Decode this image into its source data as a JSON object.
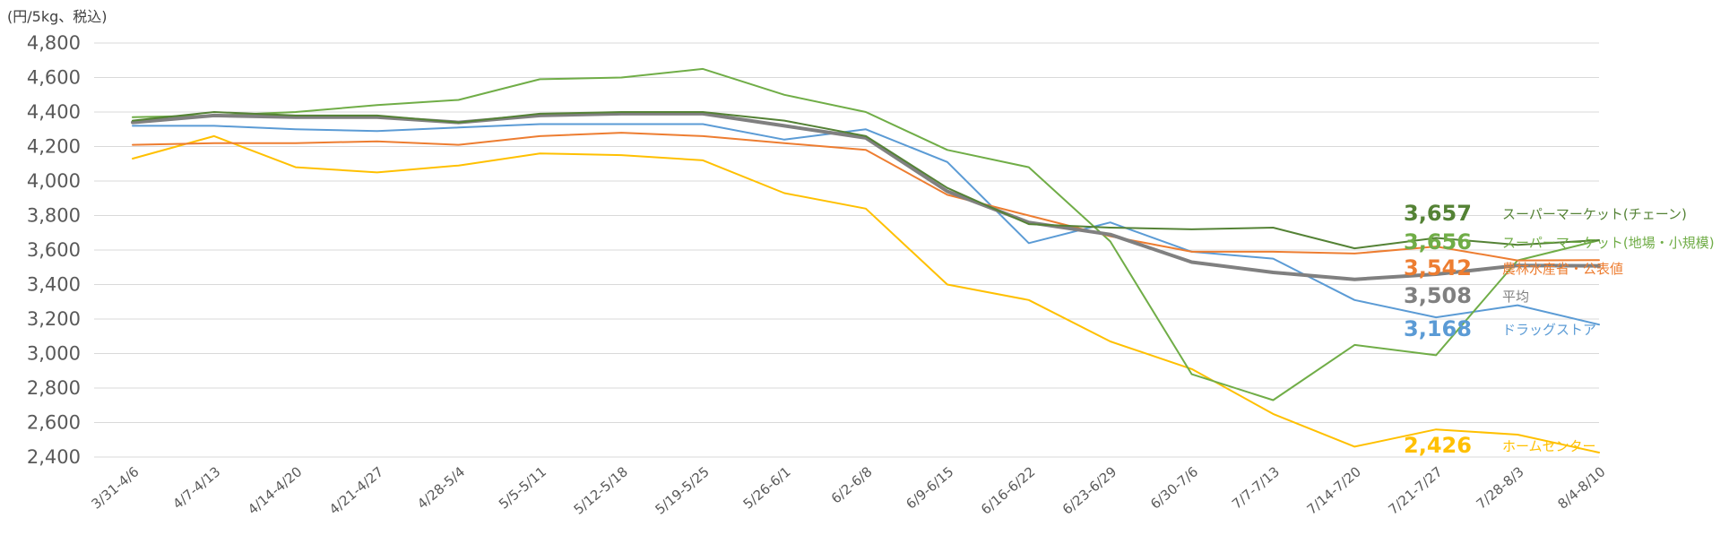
{
  "chart_data": {
    "type": "line",
    "ylabel": "(円/5kg、税込)",
    "ylim": [
      2400,
      4800
    ],
    "yticks": [
      2400,
      2600,
      2800,
      3000,
      3200,
      3400,
      3600,
      3800,
      4000,
      4200,
      4400,
      4600,
      4800
    ],
    "ytick_labels": [
      "2,400",
      "2,600",
      "2,800",
      "3,000",
      "3,200",
      "3,400",
      "3,600",
      "3,800",
      "4,000",
      "4,200",
      "4,400",
      "4,600",
      "4,800"
    ],
    "grid": true,
    "legend": "right-end labels",
    "categories": [
      "3/31-4/6",
      "4/7-4/13",
      "4/14-4/20",
      "4/21-4/27",
      "4/28-5/4",
      "5/5-5/11",
      "5/12-5/18",
      "5/19-5/25",
      "5/26-6/1",
      "6/2-6/8",
      "6/9-6/15",
      "6/16-6/22",
      "6/23-6/29",
      "6/30-7/6",
      "7/7-7/13",
      "7/14-7/20",
      "7/21-7/27",
      "7/28-8/3",
      "8/4-8/10"
    ],
    "series": [
      {
        "name": "ホームセンター",
        "color": "#ffc000",
        "values": [
          4130,
          4260,
          4080,
          4050,
          4090,
          4160,
          4150,
          4120,
          3930,
          3840,
          3400,
          3310,
          3070,
          2910,
          2650,
          2460,
          2560,
          2530,
          2426
        ],
        "end_label": "2,426",
        "line_width": 2
      },
      {
        "name": "ドラッグストア",
        "color": "#5b9bd5",
        "values": [
          4320,
          4320,
          4300,
          4290,
          4310,
          4330,
          4330,
          4330,
          4240,
          4300,
          4110,
          3640,
          3760,
          3590,
          3550,
          3310,
          3210,
          3280,
          3168
        ],
        "end_label": "3,168",
        "line_width": 2
      },
      {
        "name": "スーパーマーケット(地場・小規模)",
        "color": "#70ad47",
        "values": [
          4370,
          4380,
          4400,
          4440,
          4470,
          4590,
          4600,
          4650,
          4500,
          4400,
          4180,
          4080,
          3650,
          2880,
          2730,
          3050,
          2990,
          3540,
          3656
        ],
        "end_label": "3,656",
        "line_width": 2
      },
      {
        "name": "農林水産省・公表値",
        "color": "#ed7d31",
        "values": [
          4210,
          4220,
          4220,
          4230,
          4210,
          4260,
          4280,
          4260,
          4220,
          4180,
          3920,
          3800,
          3680,
          3590,
          3590,
          3580,
          3620,
          3540,
          3542
        ],
        "end_label": "3,542",
        "line_width": 2
      },
      {
        "name": "平均",
        "color": "#808080",
        "values": [
          4340,
          4380,
          4370,
          4370,
          4340,
          4380,
          4390,
          4390,
          4320,
          4250,
          3940,
          3760,
          3690,
          3530,
          3470,
          3430,
          3460,
          3510,
          3508
        ],
        "end_label": "3,508",
        "line_width": 4
      },
      {
        "name": "スーパーマーケット(チェーン)",
        "color": "#548235",
        "values": [
          4350,
          4400,
          4380,
          4380,
          4340,
          4390,
          4400,
          4400,
          4350,
          4260,
          3960,
          3750,
          3730,
          3720,
          3730,
          3610,
          3670,
          3630,
          3657
        ],
        "end_label": "3,657",
        "line_width": 2
      }
    ]
  }
}
